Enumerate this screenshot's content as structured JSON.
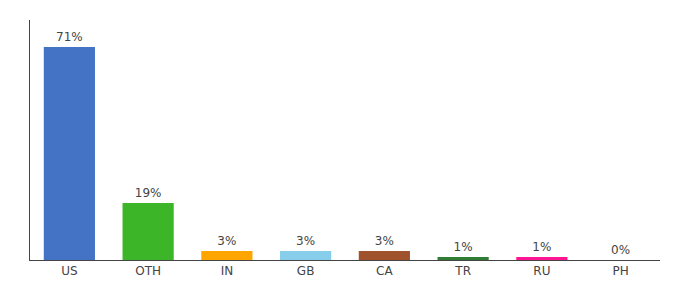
{
  "chart_data": {
    "type": "bar",
    "categories": [
      "US",
      "OTH",
      "IN",
      "GB",
      "CA",
      "TR",
      "RU",
      "PH"
    ],
    "values": [
      71,
      19,
      3,
      3,
      3,
      1,
      1,
      0
    ],
    "value_labels": [
      "71%",
      "19%",
      "3%",
      "3%",
      "3%",
      "1%",
      "1%",
      "0%"
    ],
    "data_labels": true,
    "colors": [
      "#4472C4",
      "#3CB628",
      "#FFA500",
      "#87CEEB",
      "#A0522D",
      "#2E7D32",
      "#FF1493",
      "#C0392B"
    ],
    "ylim": [
      0,
      80
    ],
    "tick_labels": "x",
    "grid": false
  }
}
